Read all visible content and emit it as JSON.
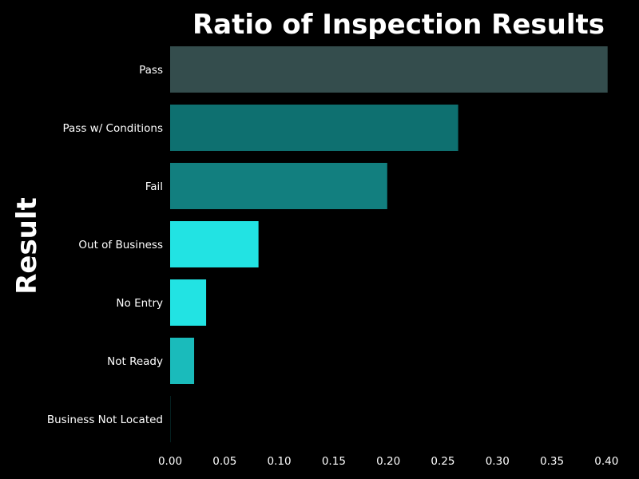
{
  "chart_data": {
    "type": "bar",
    "orientation": "horizontal",
    "title": "Ratio of Inspection Results",
    "xlabel": "",
    "ylabel": "Result",
    "xlim": [
      0,
      0.41
    ],
    "xticks": [
      "0.00",
      "0.05",
      "0.10",
      "0.15",
      "0.20",
      "0.25",
      "0.30",
      "0.35",
      "0.40"
    ],
    "grid": false,
    "categories": [
      "Pass",
      "Pass w/ Conditions",
      "Fail",
      "Out of Business",
      "No Entry",
      "Not Ready",
      "Business Not Located"
    ],
    "values": [
      0.401,
      0.264,
      0.199,
      0.081,
      0.033,
      0.022,
      0.0001
    ],
    "colors": [
      "#344d4d",
      "#0e7070",
      "#127f7f",
      "#22e3e3",
      "#22e3e3",
      "#1abbbb",
      "#22e3e3"
    ]
  }
}
